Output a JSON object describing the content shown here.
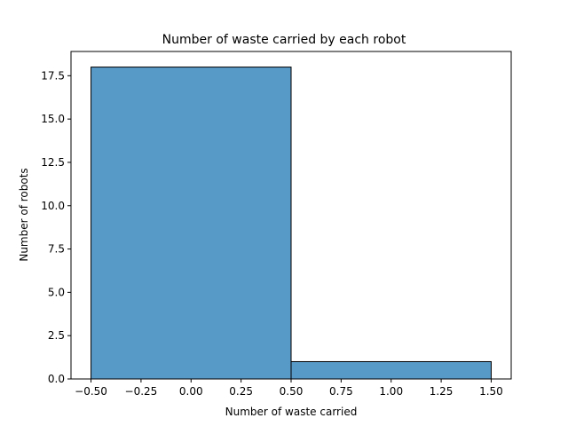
{
  "chart_data": {
    "type": "bar",
    "title": "Number of waste carried by each robot",
    "xlabel": "Number of waste carried",
    "ylabel": "Number of robots",
    "bins": [
      {
        "x_start": -0.5,
        "x_end": 0.5,
        "value": 18
      },
      {
        "x_start": 0.5,
        "x_end": 1.5,
        "value": 1
      }
    ],
    "xlim": [
      -0.6,
      1.6
    ],
    "ylim": [
      0,
      18.9
    ],
    "x_ticks": [
      -0.5,
      -0.25,
      0.0,
      0.25,
      0.5,
      0.75,
      1.0,
      1.25,
      1.5
    ],
    "x_tick_labels": [
      "−0.50",
      "−0.25",
      "0.00",
      "0.25",
      "0.50",
      "0.75",
      "1.00",
      "1.25",
      "1.50"
    ],
    "y_ticks": [
      0,
      2.5,
      5,
      7.5,
      10,
      12.5,
      15,
      17.5
    ],
    "y_tick_labels": [
      "0.0",
      "2.5",
      "5.0",
      "7.5",
      "10.0",
      "12.5",
      "15.0",
      "17.5"
    ],
    "grid": false,
    "bar_color": "#5799c7",
    "edge_color": "#000000"
  }
}
